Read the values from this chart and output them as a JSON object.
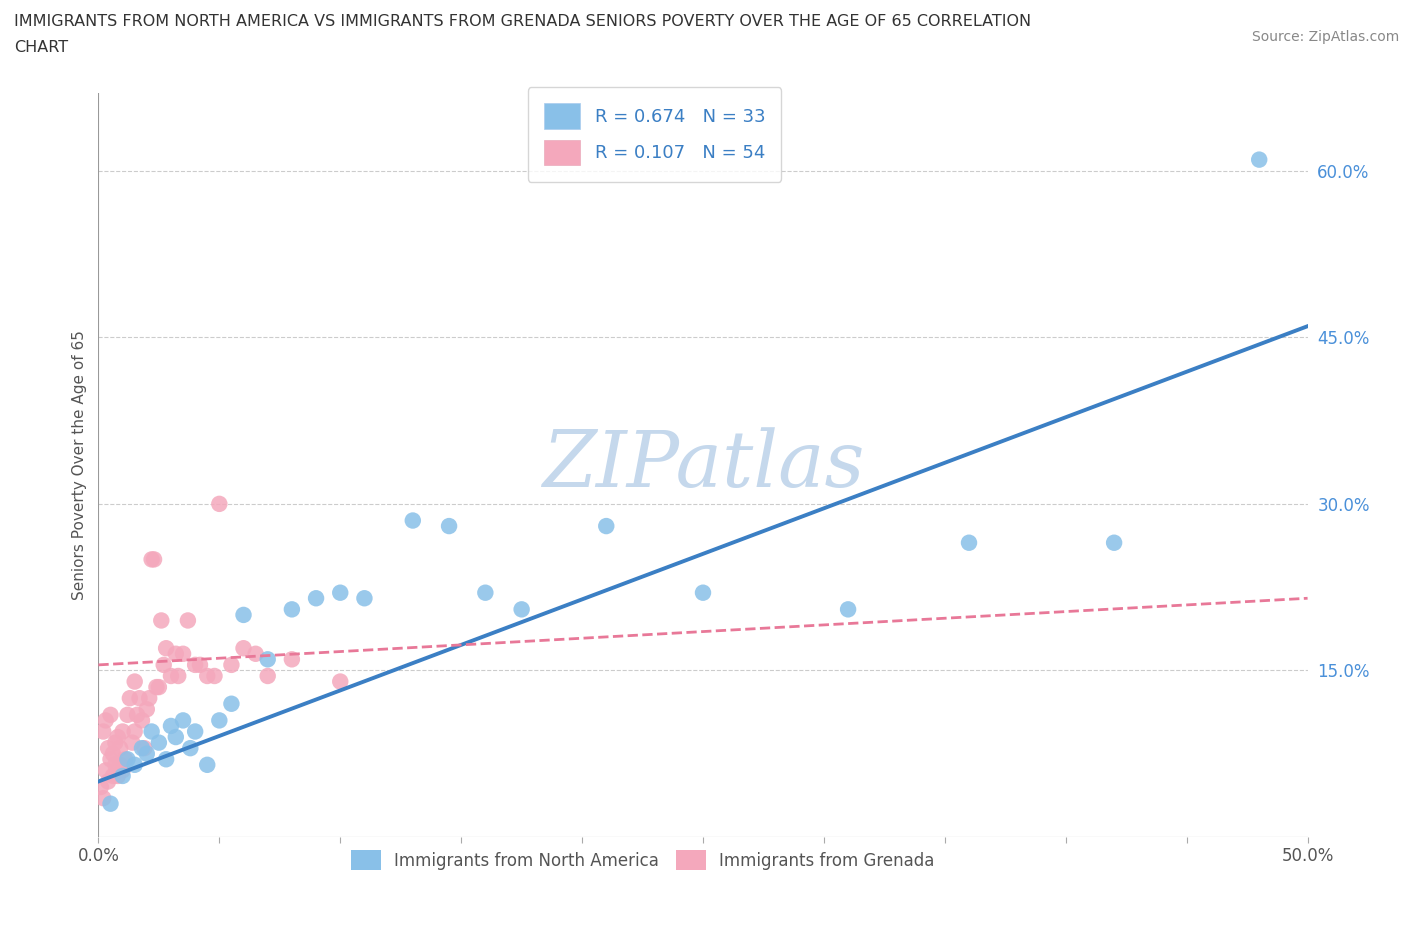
{
  "title_line1": "IMMIGRANTS FROM NORTH AMERICA VS IMMIGRANTS FROM GRENADA SENIORS POVERTY OVER THE AGE OF 65 CORRELATION",
  "title_line2": "CHART",
  "source": "Source: ZipAtlas.com",
  "ylabel": "Seniors Poverty Over the Age of 65",
  "xlim": [
    0.0,
    0.5
  ],
  "ylim": [
    0.0,
    0.67
  ],
  "xtick_positions": [
    0.0,
    0.05,
    0.1,
    0.15,
    0.2,
    0.25,
    0.3,
    0.35,
    0.4,
    0.45,
    0.5
  ],
  "xtick_labels_show": {
    "0.0": "0.0%",
    "0.5": "50.0%"
  },
  "yticks_right": [
    0.15,
    0.3,
    0.45,
    0.6
  ],
  "yticks_right_labels": [
    "15.0%",
    "30.0%",
    "45.0%",
    "60.0%"
  ],
  "grid_color": "#cccccc",
  "background_color": "#ffffff",
  "watermark": "ZIPatlas",
  "watermark_color": "#c5d8ec",
  "blue_color": "#89C0E8",
  "pink_color": "#F4A8BC",
  "blue_line_color": "#3B7FC4",
  "pink_line_color": "#E87898",
  "legend_label_blue": "R = 0.674   N = 33",
  "legend_label_pink": "R = 0.107   N = 54",
  "bottom_legend_blue": "Immigrants from North America",
  "bottom_legend_pink": "Immigrants from Grenada",
  "blue_x": [
    0.005,
    0.01,
    0.012,
    0.015,
    0.018,
    0.02,
    0.022,
    0.025,
    0.028,
    0.03,
    0.032,
    0.035,
    0.038,
    0.04,
    0.045,
    0.05,
    0.055,
    0.06,
    0.07,
    0.08,
    0.09,
    0.1,
    0.11,
    0.13,
    0.145,
    0.16,
    0.175,
    0.21,
    0.25,
    0.31,
    0.36,
    0.42,
    0.48
  ],
  "blue_y": [
    0.03,
    0.055,
    0.07,
    0.065,
    0.08,
    0.075,
    0.095,
    0.085,
    0.07,
    0.1,
    0.09,
    0.105,
    0.08,
    0.095,
    0.065,
    0.105,
    0.12,
    0.2,
    0.16,
    0.205,
    0.215,
    0.22,
    0.215,
    0.285,
    0.28,
    0.22,
    0.205,
    0.28,
    0.22,
    0.205,
    0.265,
    0.265,
    0.61
  ],
  "pink_x": [
    0.001,
    0.002,
    0.002,
    0.003,
    0.003,
    0.004,
    0.004,
    0.005,
    0.005,
    0.006,
    0.006,
    0.007,
    0.007,
    0.008,
    0.008,
    0.009,
    0.009,
    0.01,
    0.01,
    0.011,
    0.012,
    0.013,
    0.014,
    0.015,
    0.015,
    0.016,
    0.017,
    0.018,
    0.019,
    0.02,
    0.021,
    0.022,
    0.023,
    0.024,
    0.025,
    0.026,
    0.027,
    0.028,
    0.03,
    0.032,
    0.033,
    0.035,
    0.037,
    0.04,
    0.042,
    0.045,
    0.048,
    0.05,
    0.055,
    0.06,
    0.065,
    0.07,
    0.08,
    0.1
  ],
  "pink_y": [
    0.045,
    0.035,
    0.095,
    0.06,
    0.105,
    0.05,
    0.08,
    0.07,
    0.11,
    0.055,
    0.075,
    0.065,
    0.085,
    0.055,
    0.09,
    0.065,
    0.08,
    0.06,
    0.095,
    0.07,
    0.11,
    0.125,
    0.085,
    0.14,
    0.095,
    0.11,
    0.125,
    0.105,
    0.08,
    0.115,
    0.125,
    0.25,
    0.25,
    0.135,
    0.135,
    0.195,
    0.155,
    0.17,
    0.145,
    0.165,
    0.145,
    0.165,
    0.195,
    0.155,
    0.155,
    0.145,
    0.145,
    0.3,
    0.155,
    0.17,
    0.165,
    0.145,
    0.16,
    0.14
  ]
}
